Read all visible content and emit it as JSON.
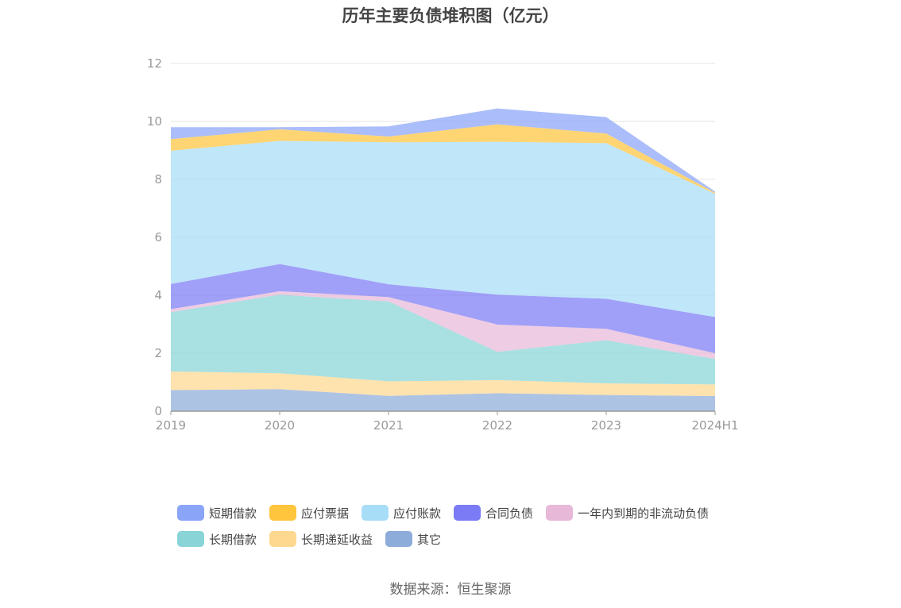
{
  "chart_data": {
    "type": "area",
    "stacked": true,
    "title": "历年主要负债堆积图（亿元）",
    "x": [
      "2019",
      "2020",
      "2021",
      "2022",
      "2023",
      "2024H1"
    ],
    "y_ticks": [
      "0",
      "2",
      "4",
      "6",
      "8",
      "10",
      "12"
    ],
    "ylim": [
      0,
      12
    ],
    "grid": true,
    "legend_position": "bottom",
    "series": [
      {
        "name": "其它",
        "color": "#8eacda",
        "values": [
          0.73,
          0.76,
          0.53,
          0.62,
          0.56,
          0.52
        ]
      },
      {
        "name": "长期递延收益",
        "color": "#ffd88f",
        "values": [
          0.64,
          0.55,
          0.5,
          0.45,
          0.4,
          0.4
        ]
      },
      {
        "name": "长期借款",
        "color": "#88d4d6",
        "values": [
          2.05,
          2.71,
          2.76,
          0.98,
          1.49,
          0.88
        ]
      },
      {
        "name": "一年内到期的非流动负债",
        "color": "#e8b8d8",
        "values": [
          0.1,
          0.12,
          0.15,
          0.94,
          0.39,
          0.2
        ]
      },
      {
        "name": "合同负债",
        "color": "#7b7cf5",
        "values": [
          0.87,
          0.94,
          0.44,
          1.03,
          1.04,
          1.25
        ]
      },
      {
        "name": "应付账款",
        "color": "#a8ddf8",
        "values": [
          4.6,
          4.25,
          4.9,
          5.28,
          5.37,
          4.25
        ]
      },
      {
        "name": "应付票据",
        "color": "#ffc53d",
        "values": [
          0.4,
          0.4,
          0.2,
          0.6,
          0.33,
          0.04
        ]
      },
      {
        "name": "短期借款",
        "color": "#8aa4f8",
        "values": [
          0.41,
          0.07,
          0.35,
          0.55,
          0.57,
          0.04
        ]
      }
    ],
    "legend_order": [
      "短期借款",
      "应付票据",
      "应付账款",
      "合同负债",
      "一年内到期的非流动负债",
      "长期借款",
      "长期递延收益",
      "其它"
    ]
  },
  "source": "数据来源：恒生聚源"
}
